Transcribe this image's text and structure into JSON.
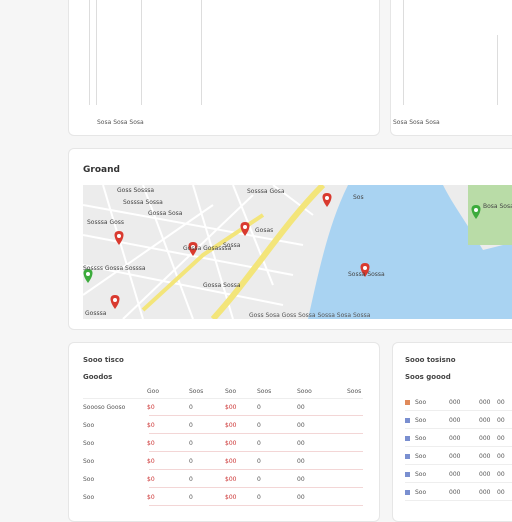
{
  "top_left": {
    "footer": "Sosa Sosa Sosa"
  },
  "top_right": {
    "footer": "Sosa Sosa Sosa"
  },
  "map_card": {
    "title": "Groand",
    "labels": [
      "Goss Sosssa",
      "Sosssa Gosa",
      "Sosssa Sossa",
      "Gossa Sosa",
      "Sosssa Goss",
      "Gosas",
      "Sossa",
      "Gossa Gosasssa",
      "Sos",
      "Sossss Gossa Sosssa",
      "Gossa Sossa",
      "Sossa Sossa",
      "Gosssa",
      "Bosa Sosa"
    ],
    "footer": "Goss Sosa Goss Sossa Sossa Sosa Sossa"
  },
  "table_left": {
    "title": "Sooo tisco",
    "subtitle": "Goodos",
    "columns": [
      "Goo",
      "Soos",
      "Soo",
      "Soos",
      "Sooo",
      "Soos"
    ],
    "rows": [
      [
        "Soooso Gooso",
        "$0",
        "0",
        "$00",
        "0",
        "00"
      ],
      [
        "Soo",
        "$0",
        "0",
        "$00",
        "0",
        "00"
      ],
      [
        "Soo",
        "$0",
        "0",
        "$00",
        "0",
        "00"
      ],
      [
        "Soo",
        "$0",
        "0",
        "$00",
        "0",
        "00"
      ],
      [
        "Soo",
        "$0",
        "0",
        "$00",
        "0",
        "00"
      ],
      [
        "Soo",
        "$0",
        "0",
        "$00",
        "0",
        "00"
      ]
    ]
  },
  "table_right": {
    "title": "Sooo tosisno",
    "subtitle": "Soos goood",
    "rows": [
      [
        "Soo",
        "000",
        "000",
        "00"
      ],
      [
        "Soo",
        "000",
        "000",
        "00"
      ],
      [
        "Soo",
        "000",
        "000",
        "00"
      ],
      [
        "Soo",
        "000",
        "000",
        "00"
      ],
      [
        "Soo",
        "000",
        "000",
        "00"
      ],
      [
        "Soo",
        "000",
        "000",
        "00"
      ]
    ]
  }
}
